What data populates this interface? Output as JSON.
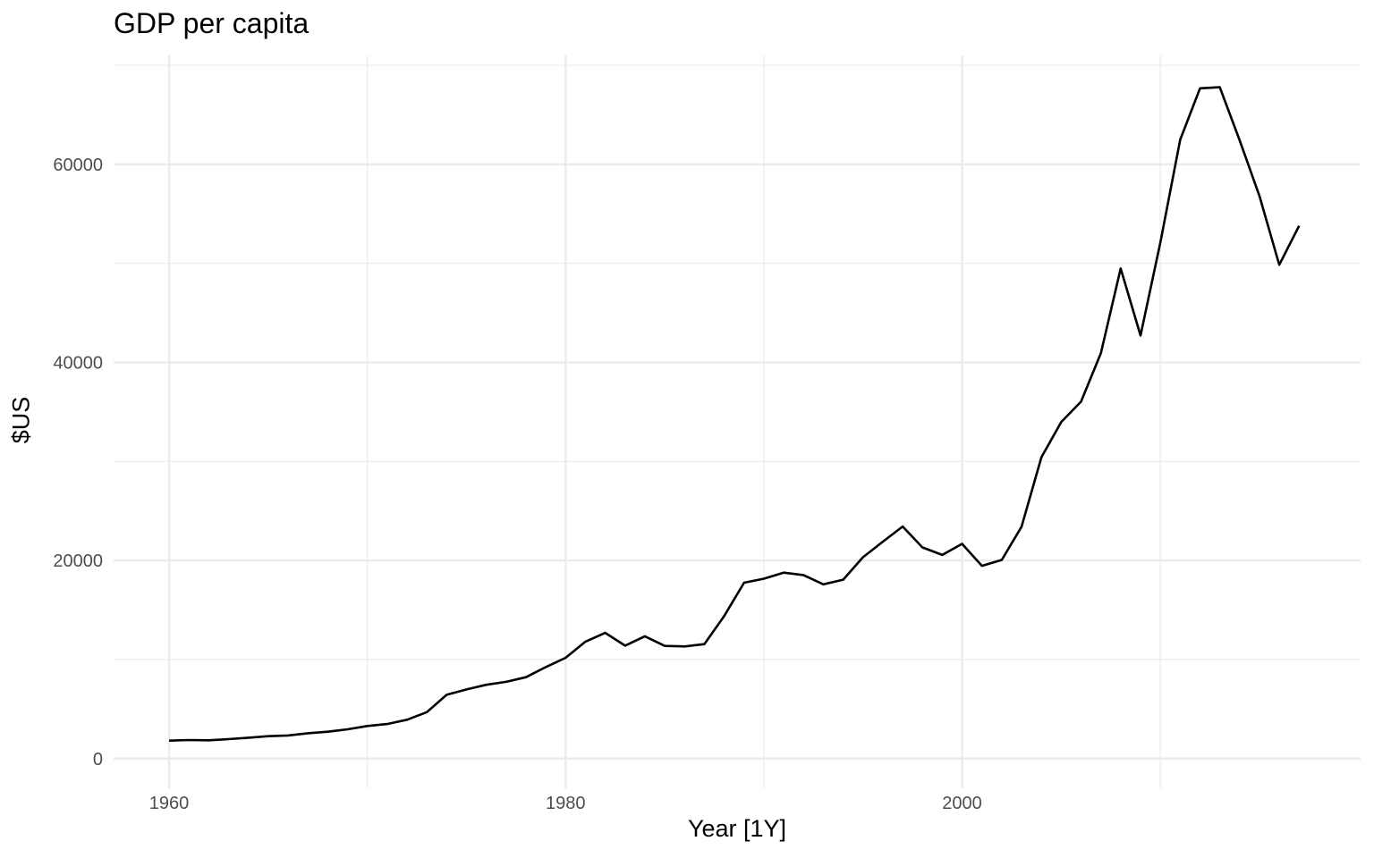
{
  "chart_data": {
    "type": "line",
    "title": "GDP per capita",
    "xlabel": "Year [1Y]",
    "ylabel": "$US",
    "xlim": [
      1957.2,
      2020.1
    ],
    "ylim": [
      -3000,
      71000
    ],
    "x_ticks": [
      1960,
      1980,
      2000
    ],
    "x_tick_labels": [
      "1960",
      "1980",
      "2000"
    ],
    "x_minor_ticks": [
      1970,
      1990,
      2010
    ],
    "y_ticks": [
      0,
      20000,
      40000,
      60000
    ],
    "y_tick_labels": [
      "0",
      "20000",
      "40000",
      "60000"
    ],
    "y_minor_ticks": [
      10000,
      30000,
      50000,
      70000
    ],
    "grid": true,
    "line_color": "#000000",
    "grid_color": "#ebebeb",
    "series": [
      {
        "x": [
          1960,
          1961,
          1962,
          1963,
          1964,
          1965,
          1966,
          1967,
          1968,
          1969,
          1970,
          1971,
          1972,
          1973,
          1974,
          1975,
          1976,
          1977,
          1978,
          1979,
          1980,
          1981,
          1982,
          1983,
          1984,
          1985,
          1986,
          1987,
          1988,
          1989,
          1990,
          1991,
          1992,
          1993,
          1994,
          1995,
          1996,
          1997,
          1998,
          1999,
          2000,
          2001,
          2002,
          2003,
          2004,
          2005,
          2006,
          2007,
          2008,
          2009,
          2010,
          2011,
          2012,
          2013,
          2014,
          2015,
          2016,
          2017
        ],
        "values": [
          1810,
          1870,
          1850,
          1960,
          2110,
          2260,
          2330,
          2560,
          2710,
          2960,
          3290,
          3490,
          3920,
          4690,
          6440,
          6980,
          7450,
          7750,
          8220,
          9240,
          10180,
          11810,
          12690,
          11400,
          12350,
          11380,
          11320,
          11560,
          14400,
          17760,
          18160,
          18780,
          18530,
          17590,
          18060,
          20330,
          21900,
          23430,
          21320,
          20560,
          21680,
          19460,
          20060,
          23410,
          30430,
          33990,
          36040,
          40940,
          49490,
          42720,
          52120,
          62470,
          67680,
          67790,
          62430,
          56800,
          49860,
          53800
        ]
      }
    ]
  }
}
